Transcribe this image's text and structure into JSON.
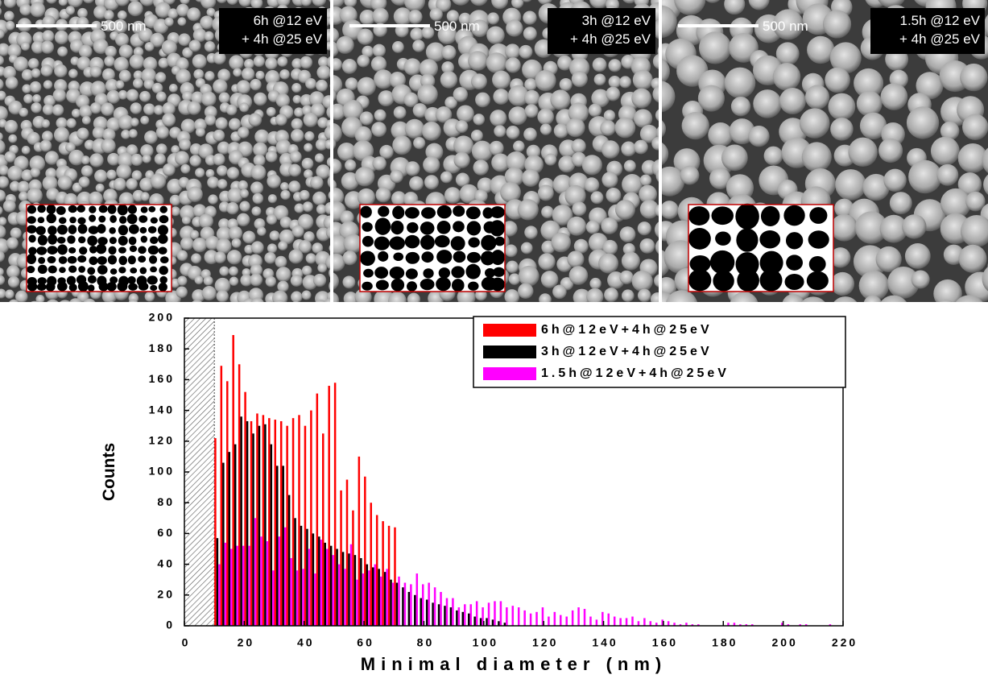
{
  "panels": [
    {
      "scale_bar": "500 nm",
      "label": [
        "6h @12 eV",
        "+ 4h @25 eV"
      ]
    },
    {
      "scale_bar": "500 nm",
      "label": [
        "3h @12 eV",
        "+ 4h @25 eV"
      ]
    },
    {
      "scale_bar": "500 nm",
      "label": [
        "1.5h @12 eV",
        "+ 4h @25 eV"
      ]
    }
  ],
  "chart_data": {
    "type": "bar",
    "xlabel": "Minimal diameter (nm)",
    "ylabel": "Counts",
    "xlim": [
      0,
      220
    ],
    "xticks": [
      0,
      20,
      40,
      60,
      80,
      100,
      120,
      140,
      160,
      180,
      200,
      220
    ],
    "ylim": [
      0,
      200
    ],
    "yticks": [
      0,
      20,
      40,
      60,
      80,
      100,
      120,
      140,
      160,
      180,
      200
    ],
    "excluded_range": [
      0,
      10
    ],
    "legend": "upper right",
    "x": [
      11,
      13,
      15,
      17,
      19,
      21,
      23,
      25,
      27,
      29,
      31,
      33,
      35,
      37,
      39,
      41,
      43,
      45,
      47,
      49,
      51,
      53,
      55,
      57,
      59,
      61,
      63,
      65,
      67,
      69,
      71,
      73,
      75,
      77,
      79,
      81,
      83,
      85,
      87,
      89,
      91,
      93,
      95,
      97,
      99,
      101,
      103,
      105,
      107,
      109,
      111,
      113,
      115,
      117,
      119,
      121,
      123,
      125,
      127,
      129,
      131,
      133,
      135,
      137,
      139,
      141,
      143,
      145,
      147,
      149,
      151,
      153,
      155,
      157,
      159,
      161,
      163,
      165,
      167,
      169,
      171,
      173,
      175,
      177,
      179,
      181,
      183,
      185,
      187,
      189,
      191,
      193,
      195,
      197,
      199,
      201,
      203,
      205,
      207,
      209,
      211,
      213,
      215,
      217
    ],
    "series": [
      {
        "name": "6h@12eV+4h@25eV",
        "color": "#ff0000",
        "values": [
          122,
          169,
          159,
          189,
          170,
          152,
          133,
          138,
          137,
          135,
          134,
          133,
          130,
          135,
          137,
          130,
          140,
          151,
          125,
          156,
          158,
          88,
          95,
          75,
          110,
          97,
          80,
          72,
          68,
          65,
          64,
          null,
          null,
          null,
          null,
          null,
          null,
          null,
          null,
          null,
          null,
          null,
          null,
          null,
          null,
          null,
          null,
          null,
          null,
          null,
          null,
          null,
          null,
          null,
          null,
          null,
          null,
          null,
          null,
          null,
          null,
          null,
          null,
          null,
          null,
          null,
          null,
          null,
          null,
          null,
          null,
          null,
          null,
          null,
          null,
          null,
          null,
          null,
          null,
          null,
          null,
          null,
          null,
          null,
          null,
          null,
          null,
          null,
          null,
          null,
          null,
          null,
          null,
          null,
          null,
          null,
          null,
          null,
          null,
          null,
          null,
          null,
          null,
          null
        ]
      },
      {
        "name": "3h@12eV+4h@25eV",
        "color": "#000000",
        "values": [
          57,
          106,
          113,
          118,
          136,
          133,
          125,
          130,
          131,
          118,
          104,
          104,
          85,
          70,
          65,
          63,
          60,
          58,
          54,
          52,
          50,
          48,
          47,
          46,
          44,
          40,
          38,
          37,
          35,
          30,
          28,
          25,
          22,
          20,
          18,
          17,
          15,
          14,
          13,
          12,
          10,
          9,
          8,
          6,
          5,
          5,
          4,
          3,
          2,
          null,
          null,
          null,
          null,
          null,
          null,
          null,
          null,
          null,
          null,
          null,
          null,
          null,
          null,
          null,
          null,
          null,
          null,
          null,
          null,
          null,
          null,
          null,
          null,
          null,
          null,
          null,
          null,
          null,
          null,
          null,
          null,
          null,
          null,
          null,
          null,
          null,
          null,
          null,
          null,
          null,
          null,
          null,
          null,
          null,
          null,
          null,
          null,
          null,
          null,
          null,
          null,
          null,
          null,
          null
        ]
      },
      {
        "name": "1.5h@12eV+4h@25eV",
        "color": "#ff00ff",
        "values": [
          40,
          54,
          50,
          52,
          52,
          52,
          70,
          58,
          55,
          36,
          58,
          64,
          44,
          36,
          37,
          50,
          34,
          56,
          50,
          46,
          40,
          37,
          53,
          30,
          34,
          36,
          40,
          32,
          37,
          28,
          32,
          28,
          27,
          34,
          27,
          28,
          25,
          22,
          18,
          18,
          12,
          14,
          14,
          16,
          12,
          15,
          16,
          16,
          12,
          13,
          12,
          10,
          8,
          9,
          12,
          6,
          9,
          7,
          6,
          10,
          12,
          11,
          6,
          4,
          9,
          8,
          6,
          5,
          5,
          6,
          3,
          5,
          3,
          2,
          4,
          3,
          2,
          1,
          2,
          1,
          1,
          0,
          0,
          0,
          0,
          2,
          2,
          1,
          1,
          1,
          0,
          0,
          0,
          0,
          2,
          1,
          0,
          1,
          1,
          0,
          0,
          0,
          1,
          0
        ]
      }
    ]
  }
}
